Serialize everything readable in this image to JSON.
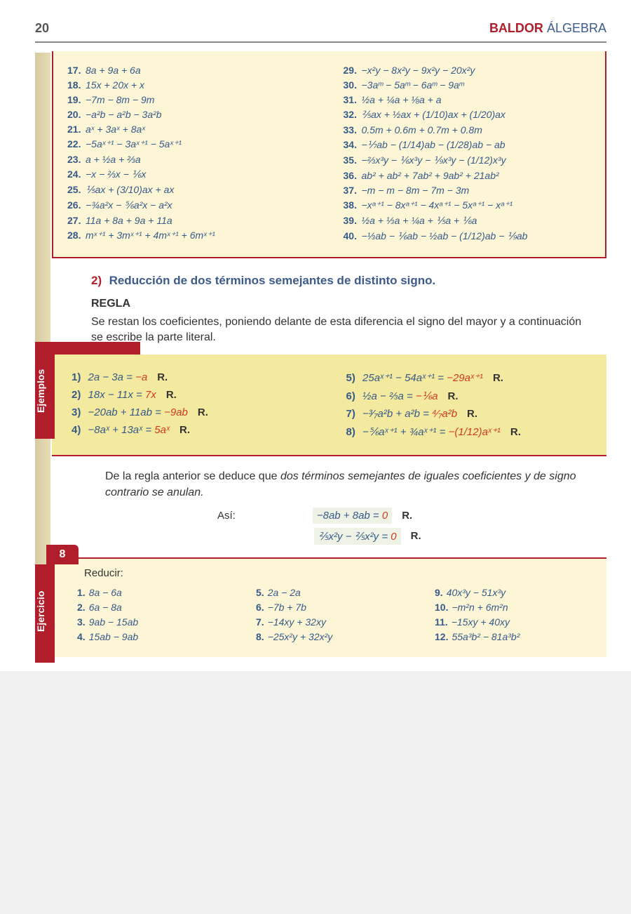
{
  "header": {
    "page": "20",
    "brand1": "BALDOR",
    "brand2": "ÁLGEBRA"
  },
  "ex1": {
    "left": [
      {
        "n": "17.",
        "e": "8a + 9a + 6a"
      },
      {
        "n": "18.",
        "e": "15x + 20x + x"
      },
      {
        "n": "19.",
        "e": "−7m − 8m − 9m"
      },
      {
        "n": "20.",
        "e": "−a²b − a²b − 3a²b"
      },
      {
        "n": "21.",
        "e": "aˣ + 3aˣ + 8aˣ"
      },
      {
        "n": "22.",
        "e": "−5aˣ⁺¹ − 3aˣ⁺¹ − 5aˣ⁺¹"
      },
      {
        "n": "23.",
        "e": "a + ½a + ⅔a"
      },
      {
        "n": "24.",
        "e": "−x − ⅔x − ⅙x"
      },
      {
        "n": "25.",
        "e": "⅕ax + (3/10)ax + ax"
      },
      {
        "n": "26.",
        "e": "−¾a²x − ⅚a²x − a²x"
      },
      {
        "n": "27.",
        "e": "11a + 8a + 9a + 11a"
      },
      {
        "n": "28.",
        "e": "mˣ⁺¹ + 3mˣ⁺¹ + 4mˣ⁺¹ + 6mˣ⁺¹"
      }
    ],
    "right": [
      {
        "n": "29.",
        "e": "−x²y − 8x²y − 9x²y − 20x²y"
      },
      {
        "n": "30.",
        "e": "−3aᵐ − 5aᵐ − 6aᵐ − 9aᵐ"
      },
      {
        "n": "31.",
        "e": "½a + ¼a + ⅛a + a"
      },
      {
        "n": "32.",
        "e": "⅖ax + ½ax + (1/10)ax + (1/20)ax"
      },
      {
        "n": "33.",
        "e": "0.5m + 0.6m + 0.7m + 0.8m"
      },
      {
        "n": "34.",
        "e": "−⅐ab − (1/14)ab − (1/28)ab − ab"
      },
      {
        "n": "35.",
        "e": "−⅔x³y − ⅙x³y − ⅑x³y − (1/12)x³y"
      },
      {
        "n": "36.",
        "e": "ab² + ab² + 7ab² + 9ab² + 21ab²"
      },
      {
        "n": "37.",
        "e": "−m − m − 8m − 7m − 3m"
      },
      {
        "n": "38.",
        "e": "−xᵃ⁺¹ − 8xᵃ⁺¹ − 4xᵃ⁺¹ − 5xᵃ⁺¹ − xᵃ⁺¹"
      },
      {
        "n": "39.",
        "e": "½a + ⅓a + ¼a + ⅕a + ⅙a"
      },
      {
        "n": "40.",
        "e": "−⅓ab − ⅙ab − ½ab − (1/12)ab − ⅑ab"
      }
    ]
  },
  "section2": {
    "num": "2)",
    "title": "Reducción de dos términos semejantes de distinto signo.",
    "regla": "REGLA",
    "text": "Se restan los coeficientes, poniendo delante de esta diferencia el signo del mayor y a continuación se escribe la parte literal."
  },
  "ejemplos": {
    "tab": "Ejemplos",
    "left": [
      {
        "n": "1)",
        "lhs": "2a − 3a =",
        "rhs": "−a",
        "R": "R."
      },
      {
        "n": "2)",
        "lhs": "18x − 11x =",
        "rhs": "7x",
        "R": "R."
      },
      {
        "n": "3)",
        "lhs": "−20ab + 11ab =",
        "rhs": "−9ab",
        "R": "R."
      },
      {
        "n": "4)",
        "lhs": "−8aˣ + 13aˣ =",
        "rhs": "5aˣ",
        "R": "R."
      }
    ],
    "right": [
      {
        "n": "5)",
        "lhs": "25aˣ⁺¹ − 54aˣ⁺¹ =",
        "rhs": "−29aˣ⁺¹",
        "R": "R."
      },
      {
        "n": "6)",
        "lhs": "½a − ⅔a =",
        "rhs": "−⅙a",
        "R": "R."
      },
      {
        "n": "7)",
        "lhs": "−³⁄₇a²b + a²b =",
        "rhs": "⁴⁄₇a²b",
        "R": "R."
      },
      {
        "n": "8)",
        "lhs": "−⅚aˣ⁺¹ + ¾aˣ⁺¹ =",
        "rhs": "−(1/12)aˣ⁺¹",
        "R": "R."
      }
    ]
  },
  "para": {
    "text_a": "De la regla anterior se deduce que ",
    "text_i": "dos términos semejantes de iguales coeficientes y de signo contrario se anulan."
  },
  "derive": {
    "asi": "Así:",
    "r1": {
      "lhs": "−8ab + 8ab =",
      "rhs": "0",
      "R": "R."
    },
    "r2": {
      "lhs": "⅖x²y − ⅖x²y =",
      "rhs": "0",
      "R": "R."
    }
  },
  "ejercicio": {
    "num": "8",
    "tab": "Ejercicio",
    "title": "Reducir:",
    "c1": [
      {
        "n": "1.",
        "e": "8a − 6a"
      },
      {
        "n": "2.",
        "e": "6a − 8a"
      },
      {
        "n": "3.",
        "e": "9ab − 15ab"
      },
      {
        "n": "4.",
        "e": "15ab − 9ab"
      }
    ],
    "c2": [
      {
        "n": "5.",
        "e": "2a − 2a"
      },
      {
        "n": "6.",
        "e": "−7b + 7b"
      },
      {
        "n": "7.",
        "e": "−14xy + 32xy"
      },
      {
        "n": "8.",
        "e": "−25x²y + 32x²y"
      }
    ],
    "c3": [
      {
        "n": "9.",
        "e": "40x³y − 51x³y"
      },
      {
        "n": "10.",
        "e": "−m²n + 6m²n"
      },
      {
        "n": "11.",
        "e": "−15xy + 40xy"
      },
      {
        "n": "12.",
        "e": "55a³b² − 81a³b²"
      }
    ]
  },
  "colors": {
    "blue": "#355a8a",
    "red": "#b11d2b",
    "orange": "#d13a1f",
    "yellow_box": "#fdf6d6",
    "ejemplos_bg": "#f3ea9f"
  }
}
